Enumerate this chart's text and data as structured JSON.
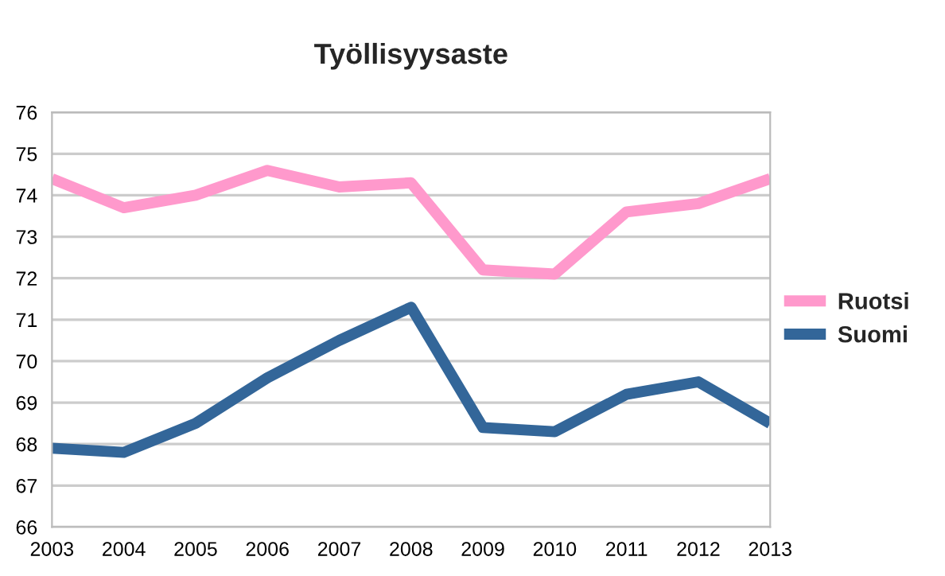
{
  "chart_data": {
    "type": "line",
    "title": "Työllisyysaste",
    "x": [
      2003,
      2004,
      2005,
      2006,
      2007,
      2008,
      2009,
      2010,
      2011,
      2012,
      2013
    ],
    "xlim": [
      2003,
      2013
    ],
    "xticks": [
      2003,
      2004,
      2005,
      2006,
      2007,
      2008,
      2009,
      2010,
      2011,
      2012,
      2013
    ],
    "ylim": [
      66,
      76
    ],
    "yticks": [
      66,
      67,
      68,
      69,
      70,
      71,
      72,
      73,
      74,
      75,
      76
    ],
    "grid": "y",
    "legend": "right",
    "marker": "none",
    "line_style": "solid",
    "series": [
      {
        "name": "Ruotsi",
        "color": "#ff99cc",
        "values": [
          74.4,
          73.7,
          74.0,
          74.6,
          74.2,
          74.3,
          72.2,
          72.1,
          73.6,
          73.8,
          74.4
        ]
      },
      {
        "name": "Suomi",
        "color": "#336699",
        "values": [
          67.9,
          67.8,
          68.5,
          69.6,
          70.5,
          71.3,
          68.4,
          68.3,
          69.2,
          69.5,
          68.5
        ]
      }
    ]
  }
}
